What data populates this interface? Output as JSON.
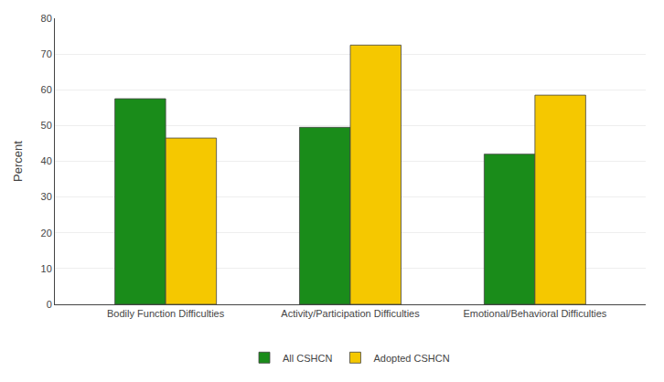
{
  "chart_data": {
    "type": "bar",
    "categories": [
      "Bodily Function Difficulties",
      "Activity/Participation Difficulties",
      "Emotional/Behavioral Difficulties"
    ],
    "series": [
      {
        "name": "All CSHCN",
        "color": "#1a8c1a",
        "values": [
          57.5,
          49.5,
          42.0
        ]
      },
      {
        "name": "Adopted CSHCN",
        "color": "#f5c800",
        "values": [
          46.5,
          72.5,
          58.5
        ]
      }
    ],
    "ylabel": "Percent",
    "ylim": [
      0,
      80
    ],
    "yticks": [
      0,
      10,
      20,
      30,
      40,
      50,
      60,
      70,
      80
    ],
    "grid": true,
    "legend": "bottom"
  }
}
